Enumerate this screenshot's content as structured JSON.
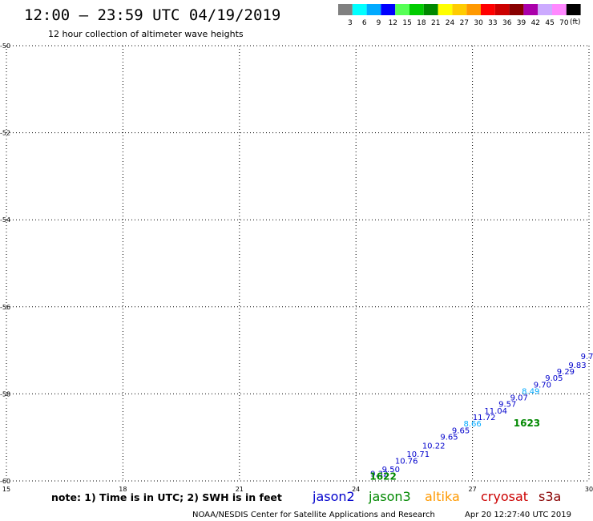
{
  "header": {
    "title": "12:00 – 23:59 UTC 04/19/2019",
    "subtitle": "12 hour collection of altimeter wave heights"
  },
  "color_scale": {
    "unit": "(ft)",
    "bins": [
      {
        "label": "3",
        "color": "#808080"
      },
      {
        "label": "6",
        "color": "#00ffff"
      },
      {
        "label": "9",
        "color": "#00aaff"
      },
      {
        "label": "12",
        "color": "#0000ff"
      },
      {
        "label": "15",
        "color": "#55ff55"
      },
      {
        "label": "18",
        "color": "#00cc00"
      },
      {
        "label": "21",
        "color": "#008800"
      },
      {
        "label": "24",
        "color": "#ffff00"
      },
      {
        "label": "27",
        "color": "#ffcc00"
      },
      {
        "label": "30",
        "color": "#ff9900"
      },
      {
        "label": "33",
        "color": "#ff0000"
      },
      {
        "label": "36",
        "color": "#cc0000"
      },
      {
        "label": "39",
        "color": "#880000"
      },
      {
        "label": "42",
        "color": "#aa00aa"
      },
      {
        "label": "45",
        "color": "#ccaaff"
      },
      {
        "label": "70",
        "color": "#ff88ff"
      },
      {
        "label": "",
        "color": "#000000"
      }
    ]
  },
  "footer": {
    "note": "note: 1) Time is in UTC; 2) SWH is in feet",
    "credit": "NOAA/NESDIS Center for Satellite Applications and Research",
    "timestamp": "Apr 20 12:27:40 UTC 2019"
  },
  "satellites": [
    {
      "name": "jason2",
      "color": "#0000cc"
    },
    {
      "name": "jason3",
      "color": "#008800"
    },
    {
      "name": "altika",
      "color": "#ff9900"
    },
    {
      "name": "cryosat",
      "color": "#cc0000"
    },
    {
      "name": "s3a",
      "color": "#880000"
    }
  ],
  "chart_data": {
    "type": "scatter",
    "xlim": [
      15,
      30
    ],
    "ylim": [
      -60,
      -50
    ],
    "x_ticks": [
      "15",
      "18",
      "21",
      "24",
      "27",
      "30"
    ],
    "y_ticks": [
      "-50",
      "-52",
      "-54",
      "-56",
      "-58",
      "-60"
    ],
    "grid": true,
    "points": [
      {
        "x": 24.6,
        "y": -59.9,
        "label": "9.32",
        "color": "#0000cc"
      },
      {
        "x": 24.9,
        "y": -59.8,
        "label": "9.50",
        "color": "#0000cc"
      },
      {
        "x": 25.3,
        "y": -59.6,
        "label": "10.76",
        "color": "#0000cc"
      },
      {
        "x": 25.6,
        "y": -59.45,
        "label": "10.71",
        "color": "#0000cc"
      },
      {
        "x": 26.0,
        "y": -59.25,
        "label": "10.22",
        "color": "#0000cc"
      },
      {
        "x": 26.4,
        "y": -59.05,
        "label": "9.65",
        "color": "#0000cc"
      },
      {
        "x": 26.7,
        "y": -58.9,
        "label": "9.65",
        "color": "#0000cc"
      },
      {
        "x": 27.0,
        "y": -58.75,
        "label": "8.66",
        "color": "#00aaff"
      },
      {
        "x": 27.3,
        "y": -58.6,
        "label": "11.72",
        "color": "#0000cc"
      },
      {
        "x": 27.6,
        "y": -58.45,
        "label": "11.04",
        "color": "#0000cc"
      },
      {
        "x": 27.9,
        "y": -58.3,
        "label": "9.57",
        "color": "#0000cc"
      },
      {
        "x": 28.2,
        "y": -58.15,
        "label": "9.07",
        "color": "#0000cc"
      },
      {
        "x": 28.5,
        "y": -58.0,
        "label": "8.49",
        "color": "#00aaff"
      },
      {
        "x": 28.8,
        "y": -57.85,
        "label": "9.70",
        "color": "#0000cc"
      },
      {
        "x": 29.1,
        "y": -57.7,
        "label": "9.05",
        "color": "#0000cc"
      },
      {
        "x": 29.4,
        "y": -57.55,
        "label": "9.29",
        "color": "#0000cc"
      },
      {
        "x": 29.7,
        "y": -57.4,
        "label": "9.83",
        "color": "#0000cc"
      },
      {
        "x": 29.95,
        "y": -57.2,
        "label": "9.7",
        "color": "#0000cc"
      }
    ],
    "annotations": [
      {
        "x": 24.7,
        "y": -59.97,
        "label": "1622",
        "color": "#008800"
      },
      {
        "x": 28.4,
        "y": -58.75,
        "label": "1623",
        "color": "#008800"
      }
    ]
  }
}
